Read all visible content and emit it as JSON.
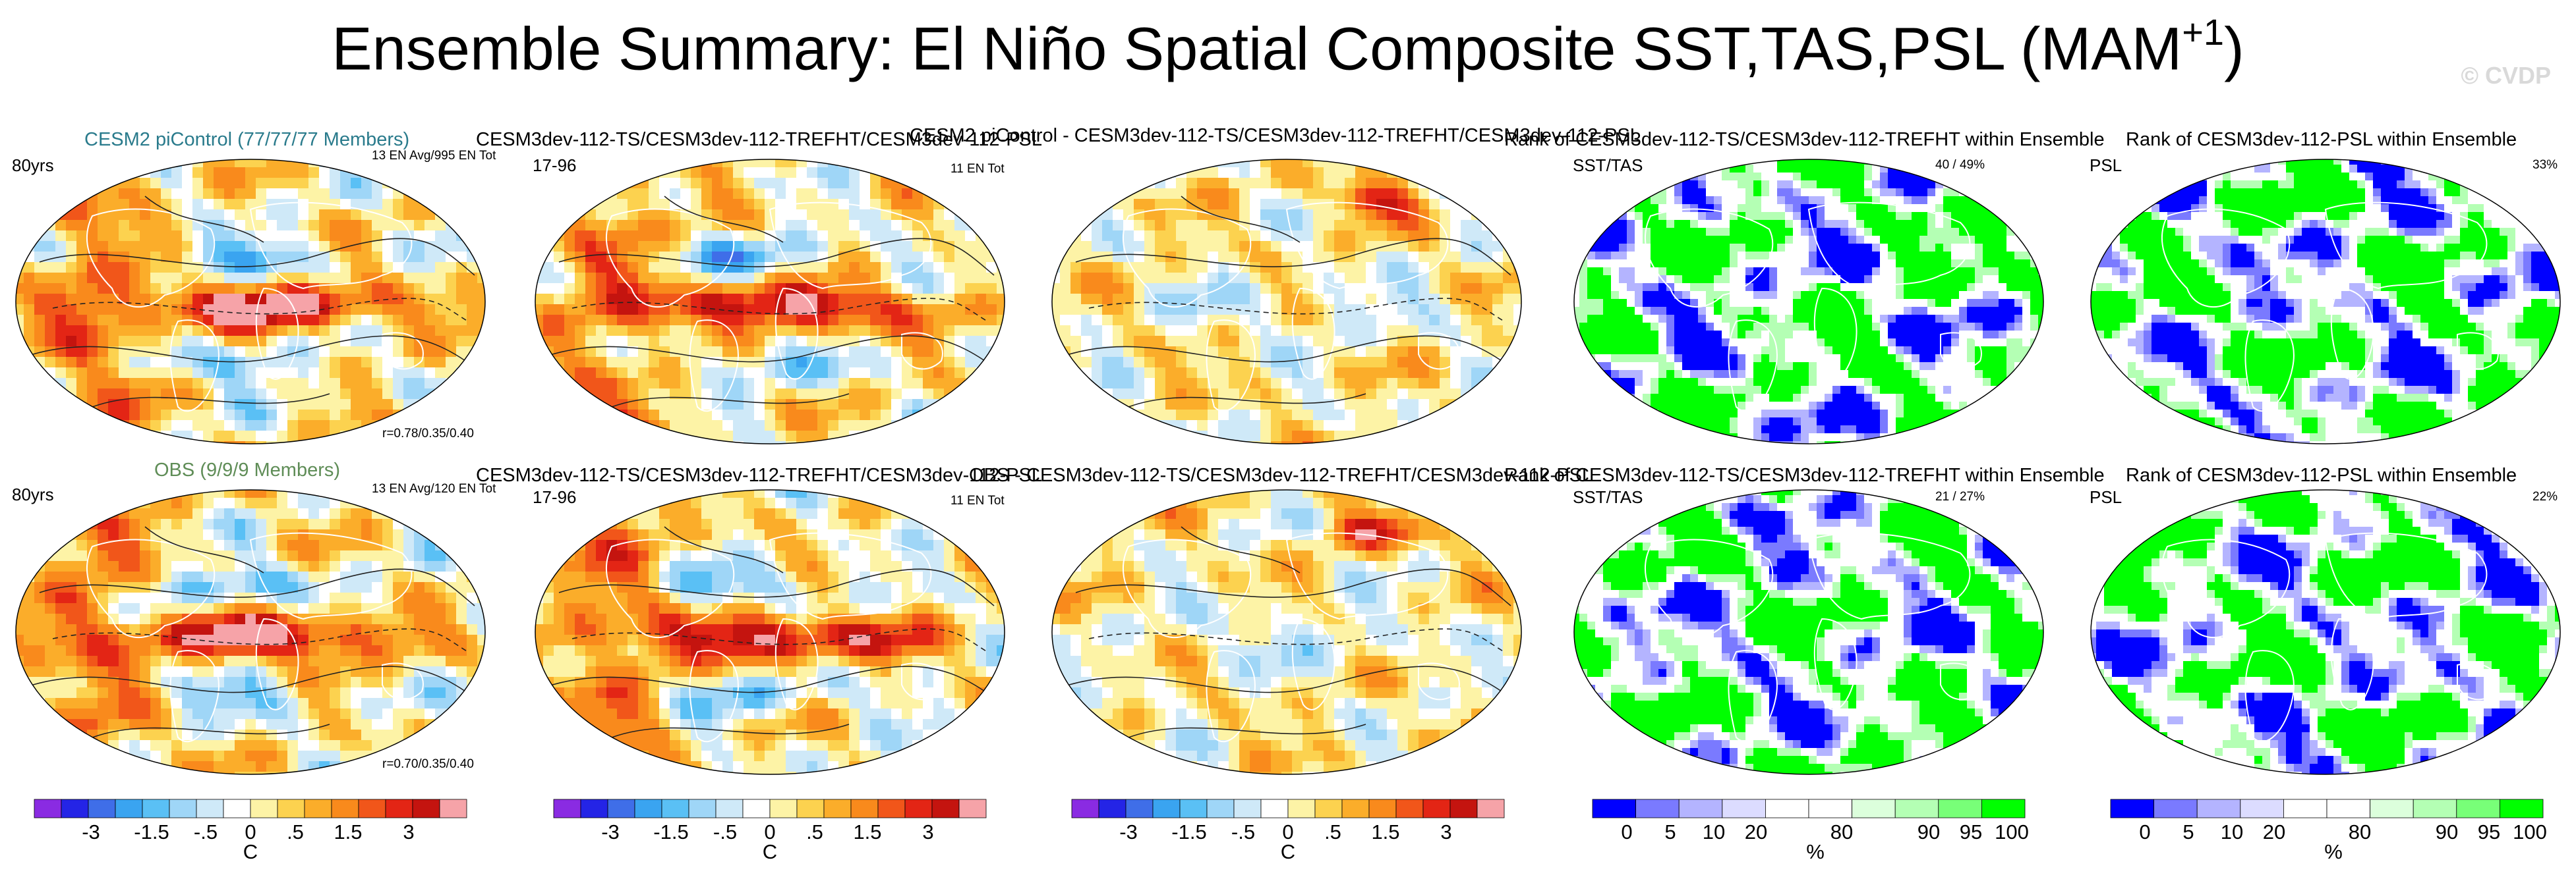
{
  "title": {
    "main": "Ensemble Summary: El Niño Spatial Composite SST,TAS,PSL (MAM",
    "sup": "+1",
    "close": ")"
  },
  "watermark": "© CVDP",
  "colors": {
    "anomaly_scale": [
      "#8a2be2",
      "#2424e6",
      "#3f6ee8",
      "#3aa4f0",
      "#5ac0f5",
      "#9fd6f7",
      "#cfe9f8",
      "#ffffff",
      "#fdf3a6",
      "#fcd24f",
      "#fbad2a",
      "#f98a1c",
      "#f1561a",
      "#e32515",
      "#c4140f",
      "#f6a3a8"
    ],
    "rank_scale": [
      "#0000ff",
      "#7a7aff",
      "#b4b4ff",
      "#dcdcff",
      "#ffffff",
      "#ffffff",
      "#dcffdc",
      "#b4ffb4",
      "#78ff78",
      "#00ff00"
    ],
    "land_outline": "#ffffff",
    "contour": "#222222"
  },
  "rows": [
    {
      "name": "model-row",
      "panels": [
        {
          "title": "CESM2 piControl (77/77/77 Members)",
          "title_color": "teal",
          "left_label": "80yrs",
          "right_label": "13 EN Avg/995 EN Tot",
          "bottom_right": "r=0.78/0.35/0.40"
        },
        {
          "title": "CESM3dev-112-TS/CESM3dev-112-TREFHT/CESM3dev-112-PSL",
          "left_label": "17-96",
          "right_label": "11 EN Tot"
        },
        {
          "title": "CESM2 piControl - CESM3dev-112-TS/CESM3dev-112-TREFHT/CESM3dev-112-PSL"
        },
        {
          "title": "Rank of CESM3dev-112-TS/CESM3dev-112-TREFHT within Ensemble",
          "left_label": "SST/TAS",
          "right_label": "40 /  49%"
        },
        {
          "title": "Rank of CESM3dev-112-PSL within Ensemble",
          "left_label": "PSL",
          "right_label": "33%"
        }
      ]
    },
    {
      "name": "obs-row",
      "panels": [
        {
          "title": "OBS (9/9/9 Members)",
          "title_color": "green",
          "left_label": "80yrs",
          "right_label": "13 EN Avg/120 EN Tot",
          "bottom_right": "r=0.70/0.35/0.40"
        },
        {
          "title": "CESM3dev-112-TS/CESM3dev-112-TREFHT/CESM3dev-112-PSL",
          "left_label": "17-96",
          "right_label": "11 EN Tot"
        },
        {
          "title": "OBS - CESM3dev-112-TS/CESM3dev-112-TREFHT/CESM3dev-112-PSL"
        },
        {
          "title": "Rank of CESM3dev-112-TS/CESM3dev-112-TREFHT within Ensemble",
          "left_label": "SST/TAS",
          "right_label": "21 /  27%"
        },
        {
          "title": "Rank of CESM3dev-112-PSL within Ensemble",
          "left_label": "PSL",
          "right_label": "22%"
        }
      ]
    }
  ],
  "colorbars": {
    "anomaly": {
      "ticks": [
        "-3",
        "-1.5",
        "-.5",
        "0",
        ".5",
        "1.5",
        "3"
      ],
      "unit": "C"
    },
    "rank": {
      "ticks": [
        "0",
        "5",
        "10",
        "20",
        "80",
        "90",
        "95",
        "100"
      ],
      "unit": "%"
    }
  },
  "chart_data": [
    {
      "type": "heatmap",
      "title": "CESM2 piControl (77/77/77 Members)",
      "subtitle": "80yrs",
      "legend_text": "13 EN Avg/995 EN Tot",
      "annotation": "r=0.78/0.35/0.40",
      "colorbar_unit": "C",
      "colorbar_ticks": [
        -3,
        -1.5,
        -0.5,
        0,
        0.5,
        1.5,
        3
      ],
      "pattern": "el-nino-warm-tropical-pacific",
      "variables": [
        "SST",
        "TAS",
        "PSL"
      ]
    },
    {
      "type": "heatmap",
      "title": "CESM3dev-112-TS/CESM3dev-112-TREFHT/CESM3dev-112-PSL",
      "subtitle": "17-96",
      "legend_text": "11 EN Tot",
      "colorbar_unit": "C",
      "colorbar_ticks": [
        -3,
        -1.5,
        -0.5,
        0,
        0.5,
        1.5,
        3
      ],
      "pattern": "el-nino-warm-tropical-pacific"
    },
    {
      "type": "heatmap",
      "title": "CESM2 piControl - CESM3dev-112-TS/CESM3dev-112-TREFHT/CESM3dev-112-PSL",
      "colorbar_unit": "C",
      "colorbar_ticks": [
        -3,
        -1.5,
        -0.5,
        0,
        0.5,
        1.5,
        3
      ],
      "pattern": "difference"
    },
    {
      "type": "heatmap",
      "title": "Rank of CESM3dev-112-TS/CESM3dev-112-TREFHT within Ensemble",
      "subtitle": "SST/TAS",
      "legend_text": "40 /  49%",
      "colorbar_unit": "%",
      "colorbar_ticks": [
        0,
        5,
        10,
        20,
        80,
        90,
        95,
        100
      ],
      "pattern": "rank"
    },
    {
      "type": "heatmap",
      "title": "Rank of CESM3dev-112-PSL within Ensemble",
      "subtitle": "PSL",
      "legend_text": "33%",
      "colorbar_unit": "%",
      "colorbar_ticks": [
        0,
        5,
        10,
        20,
        80,
        90,
        95,
        100
      ],
      "pattern": "rank"
    },
    {
      "type": "heatmap",
      "title": "OBS (9/9/9 Members)",
      "subtitle": "80yrs",
      "legend_text": "13 EN Avg/120 EN Tot",
      "annotation": "r=0.70/0.35/0.40",
      "colorbar_unit": "C",
      "pattern": "el-nino-warm-tropical-pacific"
    },
    {
      "type": "heatmap",
      "title": "CESM3dev-112-TS/CESM3dev-112-TREFHT/CESM3dev-112-PSL",
      "subtitle": "17-96",
      "legend_text": "11 EN Tot",
      "colorbar_unit": "C",
      "pattern": "el-nino-warm-tropical-pacific"
    },
    {
      "type": "heatmap",
      "title": "OBS - CESM3dev-112-TS/CESM3dev-112-TREFHT/CESM3dev-112-PSL",
      "colorbar_unit": "C",
      "pattern": "difference"
    },
    {
      "type": "heatmap",
      "title": "Rank of CESM3dev-112-TS/CESM3dev-112-TREFHT within Ensemble",
      "subtitle": "SST/TAS",
      "legend_text": "21 /  27%",
      "colorbar_unit": "%",
      "pattern": "rank"
    },
    {
      "type": "heatmap",
      "title": "Rank of CESM3dev-112-PSL within Ensemble",
      "subtitle": "PSL",
      "legend_text": "22%",
      "colorbar_unit": "%",
      "pattern": "rank"
    }
  ]
}
